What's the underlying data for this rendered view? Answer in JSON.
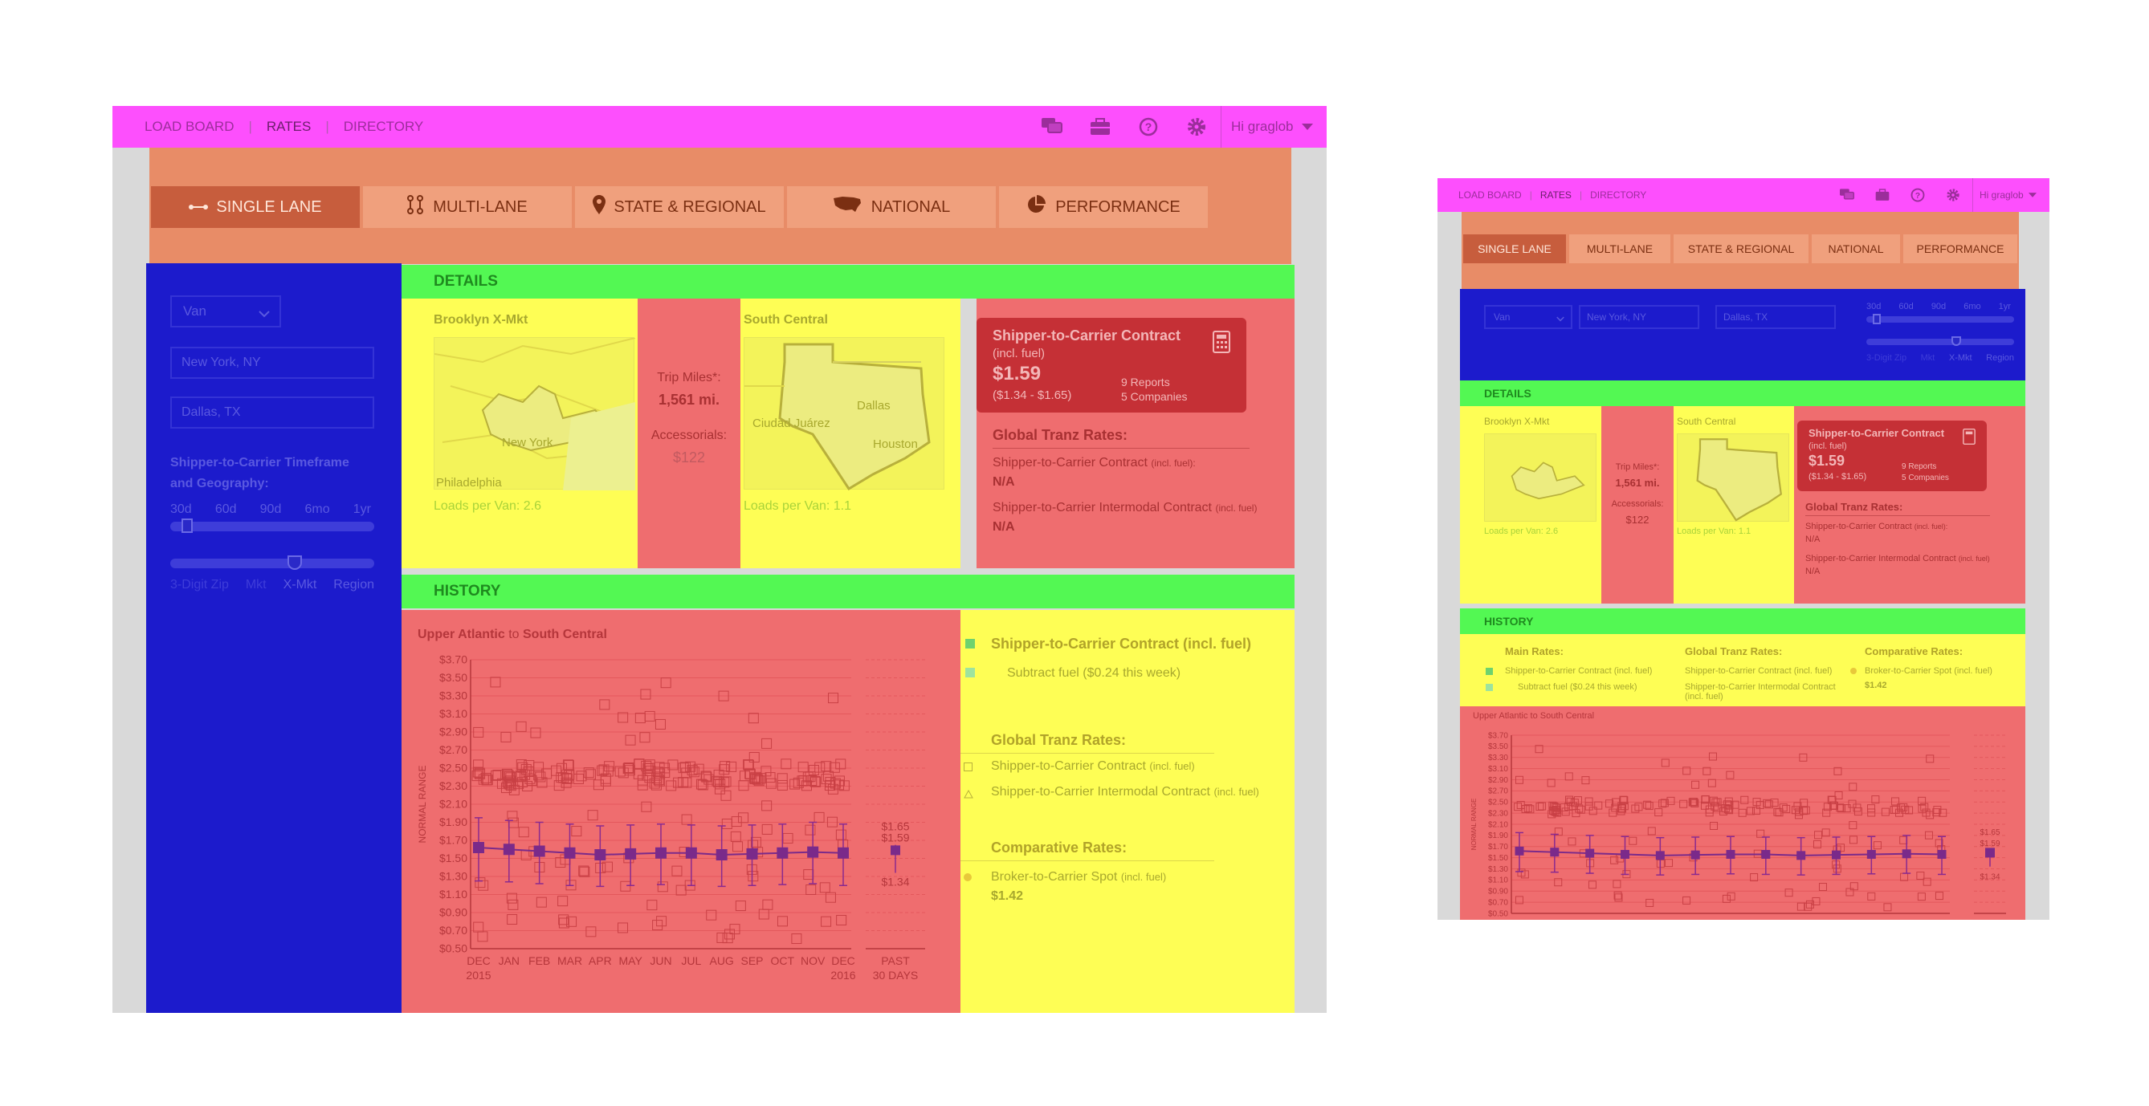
{
  "nav": {
    "items": [
      "LOAD BOARD",
      "RATES",
      "DIRECTORY"
    ],
    "greeting": "Hi graglob"
  },
  "icons": [
    "chat-icon",
    "briefcase-icon",
    "help-icon",
    "gear-icon",
    "chevron-down-icon",
    "calculator-icon",
    "map-pin-icon",
    "usa-map-icon",
    "pie-chart-icon",
    "lane-icon",
    "multi-lane-icon"
  ],
  "tabs": [
    "SINGLE LANE",
    "MULTI-LANE",
    "STATE & REGIONAL",
    "NATIONAL",
    "PERFORMANCE"
  ],
  "sidebar": {
    "equipment": "Van",
    "origin": "New York, NY",
    "destination": "Dallas, TX",
    "timeframe_label": "Shipper-to-Carrier Timeframe and Geography:",
    "timeframe_ticks": [
      "30d",
      "60d",
      "90d",
      "6mo",
      "1yr"
    ],
    "timeframe_level": 0.1,
    "geo_ticks": [
      "3-Digit Zip",
      "Mkt",
      "X-Mkt",
      "Region"
    ],
    "geo_level": 0.67
  },
  "details": {
    "header": "DETAILS",
    "origin_market": "Brooklyn X-Mkt",
    "origin_loads": "Loads per Van: 2.6",
    "origin_cities": [
      "New York",
      "Philadelphia"
    ],
    "trip_miles_label": "Trip Miles*:",
    "trip_miles": "1,561 mi.",
    "accessorials_label": "Accessorials:",
    "accessorials": "$122",
    "dest_market": "South Central",
    "dest_loads": "Loads per Van: 1.1",
    "dest_cities": [
      "Ciudad Juárez",
      "Dallas",
      "Houston"
    ],
    "contract": {
      "title": "Shipper-to-Carrier Contract",
      "subtitle": "(incl. fuel)",
      "rate": "$1.59",
      "range": "($1.34 - $1.65)",
      "reports": "9 Reports",
      "companies": "5 Companies"
    },
    "global_title": "Global Tranz Rates:",
    "global_rows": [
      {
        "label": "Shipper-to-Carrier Contract",
        "note": "(incl. fuel):",
        "value": "N/A"
      },
      {
        "label": "Shipper-to-Carrier Intermodal Contract",
        "note": "(incl. fuel)",
        "value": "N/A"
      }
    ]
  },
  "history": {
    "header": "HISTORY",
    "lane_from": "Upper Atlantic",
    "lane_to": "to",
    "lane_dest": "South Central",
    "legend": {
      "main": "Shipper-to-Carrier Contract (incl. fuel)",
      "subtract": "Subtract fuel ($0.24 this week)",
      "global_title": "Global Tranz Rates:",
      "global_items": [
        {
          "label": "Shipper-to-Carrier Contract",
          "note": "(incl. fuel)"
        },
        {
          "label": "Shipper-to-Carrier Intermodal Contract",
          "note": "(incl. fuel)"
        }
      ],
      "comp_title": "Comparative Rates:",
      "comp_item": {
        "label": "Broker-to-Carrier Spot",
        "note": "(incl. fuel)",
        "value": "$1.42"
      }
    },
    "past_label": "PAST",
    "past_sub": "30 DAYS",
    "past_values": [
      "$1.65",
      "$1.59",
      "$1.34"
    ]
  },
  "mini": {
    "main_rates": "Main Rates:",
    "global_rates": "Global Tranz Rates:",
    "comp_rates": "Comparative Rates:",
    "main_items": [
      "Shipper-to-Carrier Contract (incl. fuel)",
      "Subtract fuel ($0.24 this week)"
    ],
    "global_items": [
      "Shipper-to-Carrier Contract (incl. fuel)",
      "Shipper-to-Carrier Intermodal Contract (incl. fuel)"
    ],
    "comp_item": "Broker-to-Carrier Spot (incl. fuel)",
    "comp_value": "$1.42"
  },
  "chart_data": {
    "type": "line",
    "title": "",
    "ylabel": "NORMAL RANGE",
    "y_ticks": [
      "$3.70",
      "$3.50",
      "$3.30",
      "$3.10",
      "$2.90",
      "$2.70",
      "$2.50",
      "$2.30",
      "$2.10",
      "$1.90",
      "$1.70",
      "$1.50",
      "$1.30",
      "$1.10",
      "$0.90",
      "$0.70",
      "$0.50"
    ],
    "ylim": [
      0.5,
      3.7
    ],
    "categories": [
      "DEC",
      "JAN",
      "FEB",
      "MAR",
      "APR",
      "MAY",
      "JUN",
      "JUL",
      "AUG",
      "SEP",
      "OCT",
      "NOV",
      "DEC"
    ],
    "year_start": "2015",
    "year_end": "2016",
    "series": [
      {
        "name": "Shipper-to-Carrier Contract (incl. fuel)",
        "values": [
          1.62,
          1.6,
          1.58,
          1.56,
          1.54,
          1.55,
          1.56,
          1.56,
          1.54,
          1.55,
          1.56,
          1.57,
          1.56
        ]
      }
    ],
    "range_low": [
      1.25,
      1.24,
      1.22,
      1.2,
      1.19,
      1.2,
      1.21,
      1.2,
      1.19,
      1.2,
      1.21,
      1.22,
      1.2
    ],
    "range_high": [
      1.95,
      1.92,
      1.9,
      1.88,
      1.86,
      1.87,
      1.88,
      1.87,
      1.86,
      1.87,
      1.88,
      1.9,
      1.88
    ],
    "past_30": {
      "value": 1.59,
      "low": 1.34,
      "high": 1.65
    },
    "grid": true
  }
}
